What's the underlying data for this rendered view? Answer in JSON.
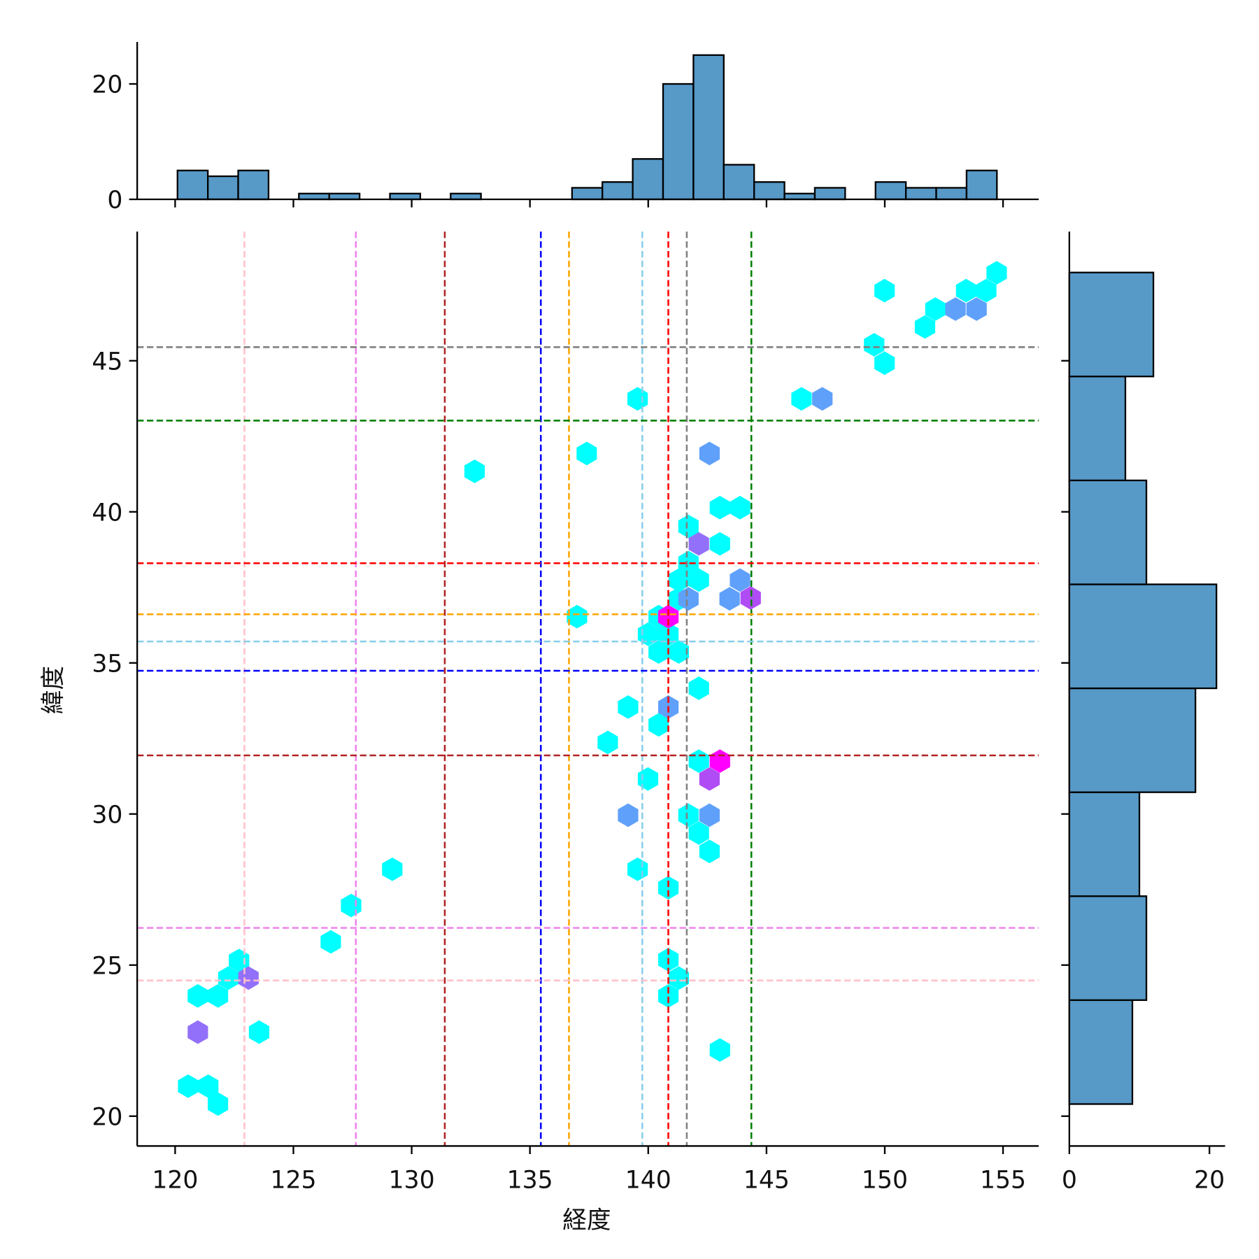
{
  "chart_data": {
    "type": "hexbin-jointplot",
    "xlabel": "経度",
    "ylabel": "緯度",
    "xlim": [
      118.4,
      156.5
    ],
    "ylim": [
      19.0,
      49.3
    ],
    "xticks": [
      "120",
      "125",
      "130",
      "135",
      "140",
      "145",
      "150",
      "155"
    ],
    "yticks": [
      "20",
      "25",
      "30",
      "35",
      "40",
      "45"
    ],
    "vlines": [
      {
        "x": 122.93,
        "color": "#ffc0cb"
      },
      {
        "x": 127.64,
        "color": "#ee82ee"
      },
      {
        "x": 131.4,
        "color": "#b22222"
      },
      {
        "x": 135.46,
        "color": "#0000ff"
      },
      {
        "x": 136.65,
        "color": "#ffa500"
      },
      {
        "x": 139.75,
        "color": "#87ceeb"
      },
      {
        "x": 140.85,
        "color": "#ff0000"
      },
      {
        "x": 141.63,
        "color": "#808080"
      },
      {
        "x": 144.36,
        "color": "#008000"
      }
    ],
    "hlines": [
      {
        "y": 45.45,
        "color": "#808080"
      },
      {
        "y": 43.02,
        "color": "#008000"
      },
      {
        "y": 38.3,
        "color": "#ff0000"
      },
      {
        "y": 36.61,
        "color": "#ffa500"
      },
      {
        "y": 35.71,
        "color": "#87ceeb"
      },
      {
        "y": 34.74,
        "color": "#0000ff"
      },
      {
        "y": 31.94,
        "color": "#b22222"
      },
      {
        "y": 26.23,
        "color": "#ee82ee"
      },
      {
        "y": 24.49,
        "color": "#ffc0cb"
      }
    ],
    "hex_colors": {
      "1": "#00ffff",
      "2": "#5fa0fa",
      "3": "#9370fa",
      "4": "#b04cf5",
      "5": "#ff00ff"
    },
    "hexbins": [
      [
        120.55,
        20.99,
        1
      ],
      [
        121.4,
        20.99,
        1
      ],
      [
        121.81,
        20.4,
        1
      ],
      [
        120.96,
        23.98,
        1
      ],
      [
        121.81,
        23.98,
        1
      ],
      [
        122.25,
        24.57,
        1
      ],
      [
        122.7,
        25.15,
        1
      ],
      [
        123.55,
        22.78,
        1
      ],
      [
        126.58,
        25.77,
        1
      ],
      [
        127.44,
        26.97,
        1
      ],
      [
        129.18,
        28.17,
        1
      ],
      [
        132.66,
        41.34,
        1
      ],
      [
        137.4,
        41.93,
        1
      ],
      [
        136.99,
        36.53,
        1
      ],
      [
        139.55,
        43.74,
        1
      ],
      [
        138.29,
        32.37,
        1
      ],
      [
        139.15,
        33.54,
        1
      ],
      [
        140.44,
        32.95,
        1
      ],
      [
        139.99,
        31.16,
        1
      ],
      [
        139.55,
        28.17,
        1
      ],
      [
        140.85,
        27.56,
        1
      ],
      [
        140.85,
        25.18,
        1
      ],
      [
        141.29,
        24.57,
        1
      ],
      [
        140.85,
        23.98,
        1
      ],
      [
        143.03,
        22.19,
        1
      ],
      [
        141.7,
        29.96,
        1
      ],
      [
        142.14,
        29.37,
        1
      ],
      [
        142.59,
        28.76,
        1
      ],
      [
        142.14,
        31.75,
        1
      ],
      [
        142.14,
        34.16,
        1
      ],
      [
        139.99,
        35.95,
        1
      ],
      [
        140.44,
        36.53,
        1
      ],
      [
        140.44,
        35.36,
        1
      ],
      [
        141.29,
        35.36,
        1
      ],
      [
        140.85,
        35.95,
        1
      ],
      [
        141.29,
        37.12,
        1
      ],
      [
        141.29,
        37.74,
        1
      ],
      [
        142.14,
        37.74,
        1
      ],
      [
        141.7,
        38.32,
        1
      ],
      [
        141.7,
        39.52,
        1
      ],
      [
        143.03,
        38.94,
        1
      ],
      [
        143.03,
        40.14,
        1
      ],
      [
        143.88,
        40.14,
        1
      ],
      [
        146.48,
        43.74,
        1
      ],
      [
        149.99,
        47.32,
        1
      ],
      [
        149.55,
        45.53,
        1
      ],
      [
        149.99,
        44.92,
        1
      ],
      [
        151.7,
        46.12,
        1
      ],
      [
        152.14,
        46.71,
        1
      ],
      [
        153.44,
        47.32,
        1
      ],
      [
        154.29,
        47.32,
        1
      ],
      [
        154.73,
        47.91,
        1
      ],
      [
        139.15,
        29.96,
        2
      ],
      [
        140.85,
        33.54,
        2
      ],
      [
        142.59,
        29.96,
        2
      ],
      [
        142.59,
        41.93,
        2
      ],
      [
        141.7,
        37.12,
        2
      ],
      [
        143.88,
        37.74,
        2
      ],
      [
        143.44,
        37.12,
        2
      ],
      [
        147.36,
        43.74,
        2
      ],
      [
        152.99,
        46.71,
        2
      ],
      [
        153.88,
        46.71,
        2
      ],
      [
        120.96,
        22.78,
        3
      ],
      [
        123.1,
        24.57,
        3
      ],
      [
        142.14,
        38.94,
        3
      ],
      [
        142.59,
        31.16,
        4
      ],
      [
        144.33,
        37.15,
        4
      ],
      [
        143.03,
        31.75,
        5
      ],
      [
        140.85,
        36.53,
        5
      ]
    ],
    "top_histogram": {
      "bin_start": 120.1,
      "bin_width": 1.283,
      "counts": [
        5,
        4,
        5,
        0,
        1,
        1,
        0,
        1,
        0,
        1,
        0,
        0,
        0,
        2,
        3,
        7,
        20,
        25,
        6,
        3,
        1,
        2,
        0,
        3,
        2,
        2,
        5
      ],
      "yticks": [
        "0",
        "20"
      ],
      "ylim": [
        0,
        27
      ]
    },
    "right_histogram": {
      "bin_edges": [
        20.4,
        23.84,
        27.28,
        30.72,
        34.16,
        37.6,
        41.04,
        44.48,
        47.92
      ],
      "counts": [
        9,
        11,
        10,
        18,
        21,
        11,
        8,
        12
      ],
      "xticks": [
        "0",
        "20"
      ],
      "xlim": [
        0,
        22
      ]
    },
    "bar_color": "#5799c7"
  }
}
